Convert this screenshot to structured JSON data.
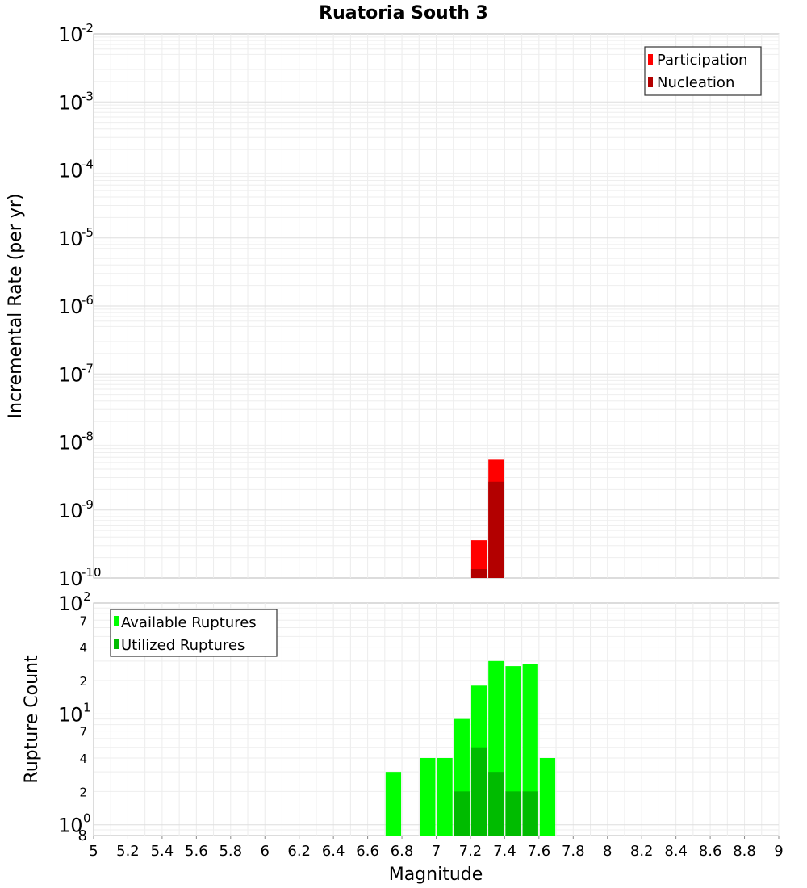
{
  "chart_data": [
    {
      "id": "rate",
      "type": "bar",
      "title": "Ruatoria South 3",
      "ylabel": "Incremental Rate (per yr)",
      "yscale": "log",
      "ylim": [
        1e-10,
        0.01
      ],
      "ytick_labels": [
        {
          "base": "10",
          "exp": "-2"
        },
        {
          "base": "10",
          "exp": "-3"
        },
        {
          "base": "10",
          "exp": "-4"
        },
        {
          "base": "10",
          "exp": "-5"
        },
        {
          "base": "10",
          "exp": "-6"
        },
        {
          "base": "10",
          "exp": "-7"
        },
        {
          "base": "10",
          "exp": "-8"
        },
        {
          "base": "10",
          "exp": "-9"
        },
        {
          "base": "10",
          "exp": "-10"
        }
      ],
      "bin_width": 0.1,
      "legend_position": "top-right",
      "grid": true,
      "series": [
        {
          "name": "Participation",
          "color": "#ff0000",
          "x": [
            7.25,
            7.35
          ],
          "values": [
            3.6e-10,
            5.5e-09
          ]
        },
        {
          "name": "Nucleation",
          "color": "#b30000",
          "x": [
            7.25,
            7.35
          ],
          "values": [
            1.35e-10,
            2.6e-09
          ]
        }
      ]
    },
    {
      "id": "count",
      "type": "bar",
      "xlabel": "Magnitude",
      "ylabel": "Rupture Count",
      "yscale": "log",
      "ylim": [
        0.8,
        100
      ],
      "xlim": [
        5,
        9
      ],
      "ytick_labels": [
        {
          "base": "10",
          "exp": "2"
        },
        {
          "base": "10",
          "exp": "1"
        },
        {
          "base": "10",
          "exp": "0"
        }
      ],
      "yminor_labels": [
        "7",
        "4",
        "2",
        "7",
        "4",
        "2",
        "8"
      ],
      "xtick_labels": [
        "5",
        "5.2",
        "5.4",
        "5.6",
        "5.8",
        "6",
        "6.2",
        "6.4",
        "6.6",
        "6.8",
        "7",
        "7.2",
        "7.4",
        "7.6",
        "7.8",
        "8",
        "8.2",
        "8.4",
        "8.6",
        "8.8",
        "9"
      ],
      "bin_width": 0.1,
      "legend_position": "top-left",
      "grid": true,
      "series": [
        {
          "name": "Available Ruptures",
          "color": "#00ff00",
          "x": [
            6.75,
            6.95,
            7.05,
            7.15,
            7.25,
            7.35,
            7.45,
            7.55,
            7.65
          ],
          "values": [
            3,
            4,
            4,
            9,
            18,
            30,
            27,
            28,
            4
          ]
        },
        {
          "name": "Utilized Ruptures",
          "color": "#00bb00",
          "x": [
            7.15,
            7.25,
            7.35,
            7.45,
            7.55
          ],
          "values": [
            2,
            5,
            3,
            2,
            2
          ]
        }
      ]
    }
  ]
}
